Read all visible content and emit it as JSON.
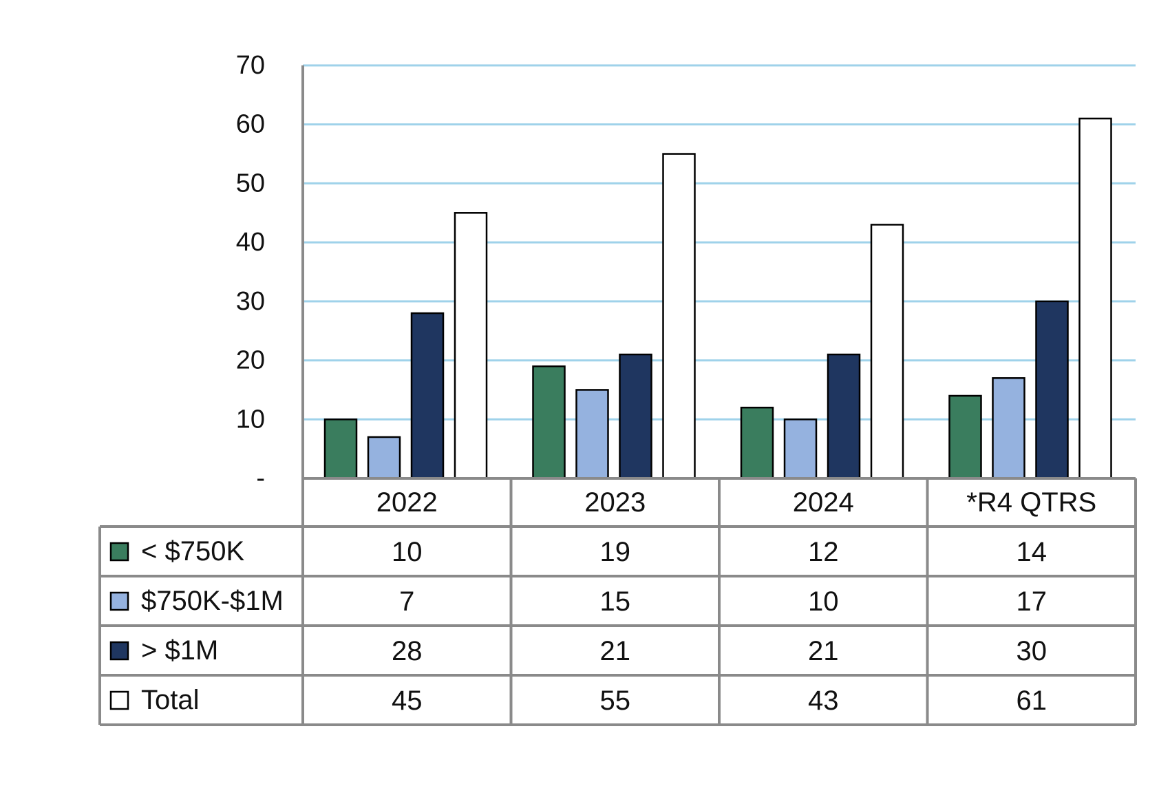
{
  "chart_data": {
    "type": "bar",
    "categories": [
      "2022",
      "2023",
      "2024",
      "*R4 QTRS"
    ],
    "ylim": [
      0,
      70
    ],
    "y_ticks": [
      "-",
      "10",
      "20",
      "30",
      "40",
      "50",
      "60",
      "70"
    ],
    "grid": true,
    "legend_placement": "data-table-left",
    "series": [
      {
        "name": "< $750K",
        "color": "#3a7d5e",
        "values": [
          10,
          19,
          12,
          14
        ]
      },
      {
        "name": "$750K-$1M",
        "color": "#95b2df",
        "values": [
          7,
          15,
          10,
          17
        ]
      },
      {
        "name": "> $1M",
        "color": "#1f3660",
        "values": [
          28,
          21,
          21,
          30
        ]
      },
      {
        "name": "Total",
        "color": "#ffffff",
        "values": [
          45,
          55,
          43,
          61
        ]
      }
    ],
    "colors": {
      "gridline": "#9fd2ea",
      "table_border": "#8a8a8a",
      "axis": "#8a8a8a"
    }
  }
}
